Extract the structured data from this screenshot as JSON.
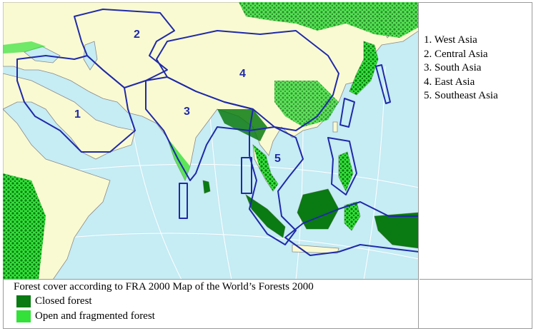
{
  "map": {
    "region_numbers": [
      "1",
      "2",
      "3",
      "4",
      "5"
    ],
    "colors": {
      "ocean": "#c6ecf4",
      "land": "#fafad2",
      "closed_forest": "#0a7a12",
      "open_forest": "#34e03a",
      "region_boundary": "#1f2aa8",
      "country_border": "#8a8a8a",
      "graticule": "#ffffff"
    }
  },
  "region_list": [
    "1. West Asia",
    "2. Central Asia",
    "3. South Asia",
    "4. East Asia",
    "5. Southeast Asia"
  ],
  "legend": {
    "title": "Forest cover according to FRA 2000 Map of the World’s Forests 2000",
    "items": [
      {
        "label": "Closed forest",
        "color": "#0a7a12"
      },
      {
        "label": "Open and fragmented forest",
        "color": "#34e03a"
      }
    ]
  }
}
